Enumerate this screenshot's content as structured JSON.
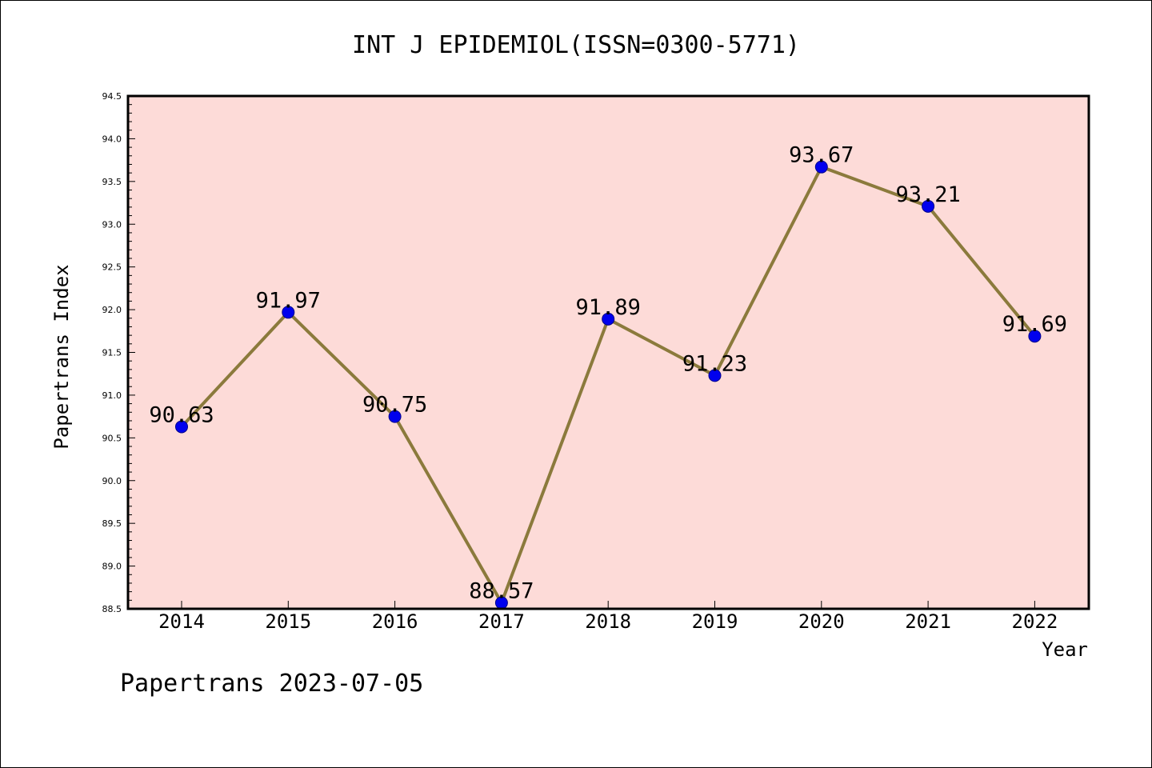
{
  "chart_data": {
    "type": "line",
    "title": "INT J EPIDEMIOL(ISSN=0300-5771)",
    "xlabel": "Year",
    "ylabel": "Papertrans Index",
    "categories": [
      "2014",
      "2015",
      "2016",
      "2017",
      "2018",
      "2019",
      "2020",
      "2021",
      "2022"
    ],
    "values": [
      90.63,
      91.97,
      90.75,
      88.57,
      91.89,
      91.23,
      93.67,
      93.21,
      91.69
    ],
    "data_labels": [
      "90.63",
      "91.97",
      "90.75",
      "88.57",
      "91.89",
      "91.23",
      "93.67",
      "93.21",
      "91.69"
    ],
    "ylim": [
      88.5,
      94.5
    ],
    "yticks": [
      "88.5",
      "89.0",
      "89.5",
      "90.0",
      "90.5",
      "91.0",
      "91.5",
      "92.0",
      "92.5",
      "93.0",
      "93.5",
      "94.0",
      "94.5"
    ],
    "grid": false,
    "colors": {
      "plot_background": "#fddbd8",
      "line": "#8b7a3c",
      "marker": "#0000ee"
    }
  },
  "footer": "Papertrans 2023-07-05"
}
